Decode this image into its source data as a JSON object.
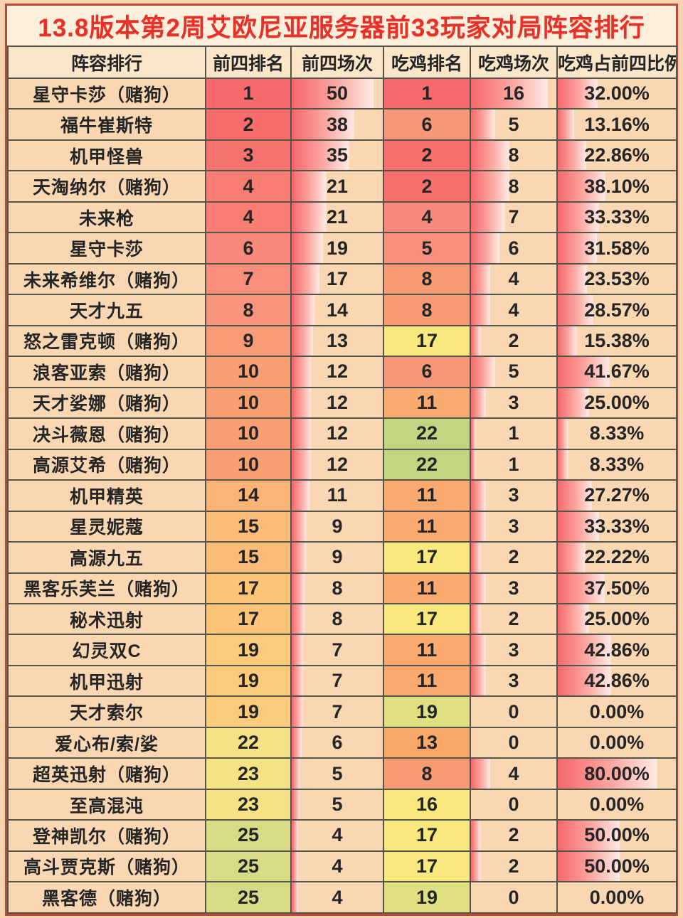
{
  "title": "13.8版本第2周艾欧尼亚服务器前33玩家对局阵容排行",
  "colors": {
    "page_bg": "#f8d3ac",
    "panel_bg": "#f9d7b2",
    "title_bg": "#fcefdb",
    "title_text": "#e73128",
    "header_bg": "#fbe6ca",
    "grid_line": "#55544b",
    "outer_border": "#b8473c",
    "body_text": "#252525",
    "bar_strong": "#f7686c",
    "bar_mid": "#fba8a2",
    "bar_pale": "#ffeae5"
  },
  "chart_data": {
    "type": "table",
    "columns": [
      "阵容排行",
      "前四排名",
      "前四场次",
      "吃鸡排名",
      "吃鸡场次",
      "吃鸡占前四比例"
    ],
    "conditional_formatting": {
      "top4_rank_colors": {
        "1": "#f7696c",
        "2": "#f76d6c",
        "3": "#f7736f",
        "4": "#f87d73",
        "6": "#f8887a",
        "7": "#f88e7b",
        "8": "#f8937c",
        "9": "#f99b77",
        "10": "#f99f74",
        "14": "#fbb376",
        "15": "#fbbc79",
        "17": "#fcc477",
        "19": "#fcca7b",
        "22": "#f4e284",
        "23": "#f4e284",
        "25": "#d7db85"
      },
      "chicken_rank_colors": {
        "1": "#f7696c",
        "2": "#f7706d",
        "4": "#f8887b",
        "5": "#f88e7c",
        "6": "#f89778",
        "8": "#f99a74",
        "11": "#faaa6e",
        "13": "#faa869",
        "16": "#f8e87d",
        "17": "#f8e87d",
        "19": "#dfe181",
        "22": "#c2d681"
      },
      "bar_scales": {
        "top4_games": {
          "max": 50,
          "full_width_pct": 90
        },
        "chicken_games": {
          "max": 16,
          "full_width_pct": 90
        },
        "ratio_pct_multiplier": 1.05
      }
    },
    "rows": [
      {
        "name": "星守卡莎（赌狗）",
        "top4_rank": "1",
        "top4_games": "50",
        "chicken_rank": "1",
        "chicken_games": "16",
        "chicken_ratio": "32.00%"
      },
      {
        "name": "福牛崔斯特",
        "top4_rank": "2",
        "top4_games": "38",
        "chicken_rank": "6",
        "chicken_games": "5",
        "chicken_ratio": "13.16%"
      },
      {
        "name": "机甲怪兽",
        "top4_rank": "3",
        "top4_games": "35",
        "chicken_rank": "2",
        "chicken_games": "8",
        "chicken_ratio": "22.86%"
      },
      {
        "name": "天淘纳尔（赌狗）",
        "top4_rank": "4",
        "top4_games": "21",
        "chicken_rank": "2",
        "chicken_games": "8",
        "chicken_ratio": "38.10%"
      },
      {
        "name": "未来枪",
        "top4_rank": "4",
        "top4_games": "21",
        "chicken_rank": "4",
        "chicken_games": "7",
        "chicken_ratio": "33.33%"
      },
      {
        "name": "星守卡莎",
        "top4_rank": "6",
        "top4_games": "19",
        "chicken_rank": "5",
        "chicken_games": "6",
        "chicken_ratio": "31.58%"
      },
      {
        "name": "未来希维尔（赌狗）",
        "top4_rank": "7",
        "top4_games": "17",
        "chicken_rank": "8",
        "chicken_games": "4",
        "chicken_ratio": "23.53%"
      },
      {
        "name": "天才九五",
        "top4_rank": "8",
        "top4_games": "14",
        "chicken_rank": "8",
        "chicken_games": "4",
        "chicken_ratio": "28.57%"
      },
      {
        "name": "怒之雷克顿（赌狗）",
        "top4_rank": "9",
        "top4_games": "13",
        "chicken_rank": "17",
        "chicken_games": "2",
        "chicken_ratio": "15.38%"
      },
      {
        "name": "浪客亚索（赌狗）",
        "top4_rank": "10",
        "top4_games": "12",
        "chicken_rank": "6",
        "chicken_games": "5",
        "chicken_ratio": "41.67%"
      },
      {
        "name": "天才娑娜（赌狗）",
        "top4_rank": "10",
        "top4_games": "12",
        "chicken_rank": "11",
        "chicken_games": "3",
        "chicken_ratio": "25.00%"
      },
      {
        "name": "决斗薇恩（赌狗）",
        "top4_rank": "10",
        "top4_games": "12",
        "chicken_rank": "22",
        "chicken_games": "1",
        "chicken_ratio": "8.33%"
      },
      {
        "name": "高源艾希（赌狗）",
        "top4_rank": "10",
        "top4_games": "12",
        "chicken_rank": "22",
        "chicken_games": "1",
        "chicken_ratio": "8.33%"
      },
      {
        "name": "机甲精英",
        "top4_rank": "14",
        "top4_games": "11",
        "chicken_rank": "11",
        "chicken_games": "3",
        "chicken_ratio": "27.27%"
      },
      {
        "name": "星灵妮蔻",
        "top4_rank": "15",
        "top4_games": "9",
        "chicken_rank": "11",
        "chicken_games": "3",
        "chicken_ratio": "33.33%"
      },
      {
        "name": "高源九五",
        "top4_rank": "15",
        "top4_games": "9",
        "chicken_rank": "17",
        "chicken_games": "2",
        "chicken_ratio": "22.22%"
      },
      {
        "name": "黑客乐芙兰（赌狗）",
        "top4_rank": "17",
        "top4_games": "8",
        "chicken_rank": "11",
        "chicken_games": "3",
        "chicken_ratio": "37.50%"
      },
      {
        "name": "秘术迅射",
        "top4_rank": "17",
        "top4_games": "8",
        "chicken_rank": "17",
        "chicken_games": "2",
        "chicken_ratio": "25.00%"
      },
      {
        "name": "幻灵双C",
        "top4_rank": "19",
        "top4_games": "7",
        "chicken_rank": "11",
        "chicken_games": "3",
        "chicken_ratio": "42.86%"
      },
      {
        "name": "机甲迅射",
        "top4_rank": "19",
        "top4_games": "7",
        "chicken_rank": "11",
        "chicken_games": "3",
        "chicken_ratio": "42.86%"
      },
      {
        "name": "天才索尔",
        "top4_rank": "19",
        "top4_games": "7",
        "chicken_rank": "19",
        "chicken_games": "0",
        "chicken_ratio": "0.00%"
      },
      {
        "name": "爱心布/索/娑",
        "top4_rank": "22",
        "top4_games": "6",
        "chicken_rank": "13",
        "chicken_games": "0",
        "chicken_ratio": "0.00%"
      },
      {
        "name": "超英迅射（赌狗）",
        "top4_rank": "23",
        "top4_games": "5",
        "chicken_rank": "8",
        "chicken_games": "4",
        "chicken_ratio": "80.00%"
      },
      {
        "name": "至高混沌",
        "top4_rank": "23",
        "top4_games": "5",
        "chicken_rank": "16",
        "chicken_games": "0",
        "chicken_ratio": "0.00%"
      },
      {
        "name": "登神凯尔（赌狗）",
        "top4_rank": "25",
        "top4_games": "4",
        "chicken_rank": "17",
        "chicken_games": "2",
        "chicken_ratio": "50.00%"
      },
      {
        "name": "高斗贾克斯（赌狗）",
        "top4_rank": "25",
        "top4_games": "4",
        "chicken_rank": "17",
        "chicken_games": "2",
        "chicken_ratio": "50.00%"
      },
      {
        "name": "黑客德（赌狗）",
        "top4_rank": "25",
        "top4_games": "4",
        "chicken_rank": "19",
        "chicken_games": "0",
        "chicken_ratio": "0.00%"
      }
    ]
  }
}
